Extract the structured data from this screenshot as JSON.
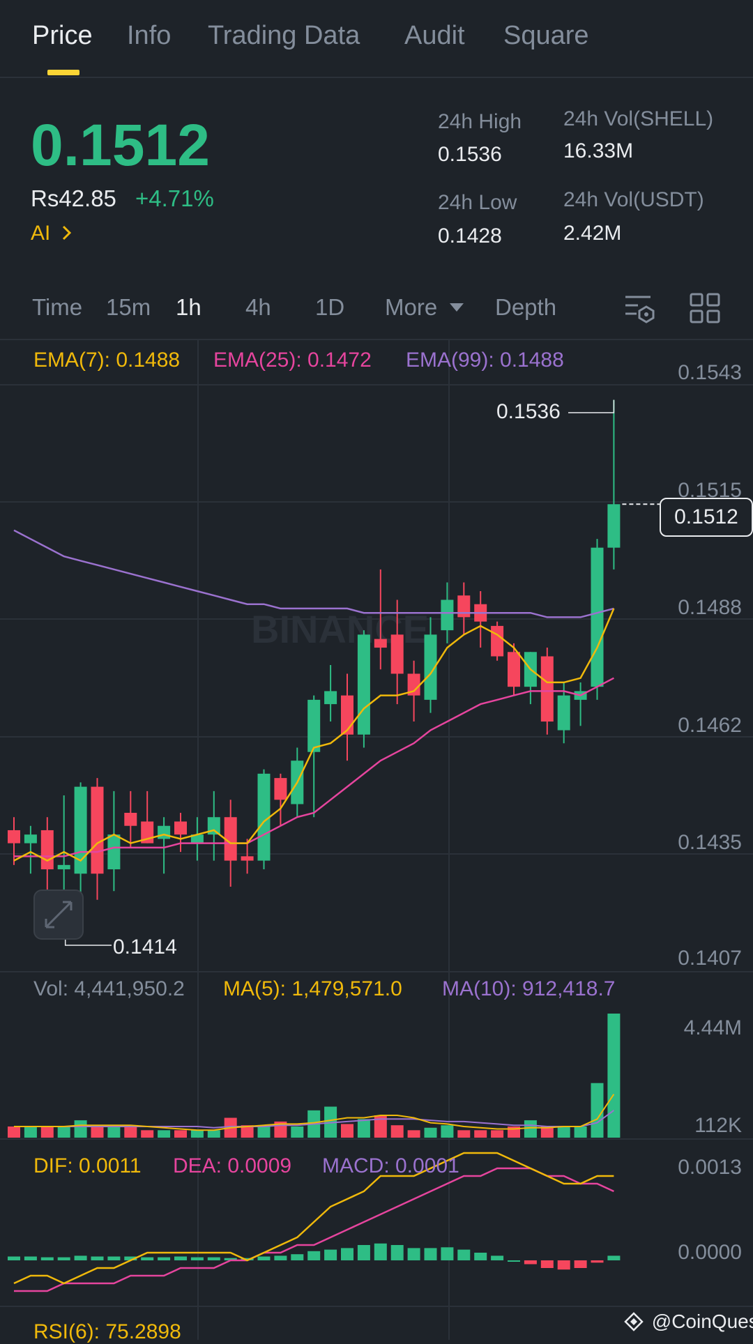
{
  "tabs": [
    {
      "label": "Price",
      "active": true
    },
    {
      "label": "Info"
    },
    {
      "label": "Trading Data"
    },
    {
      "label": "Audit"
    },
    {
      "label": "Square"
    }
  ],
  "ticker": {
    "price": "0.1512",
    "fiat": "Rs42.85",
    "change": "+4.71%",
    "ai_label": "AI",
    "high_label": "24h High",
    "high_value": "0.1536",
    "low_label": "24h Low",
    "low_value": "0.1428",
    "vol_base_label": "24h Vol(SHELL)",
    "vol_base_value": "16.33M",
    "vol_quote_label": "24h Vol(USDT)",
    "vol_quote_value": "2.42M"
  },
  "timeframes": [
    "Time",
    "15m",
    "1h",
    "4h",
    "1D",
    "More",
    "Depth"
  ],
  "active_timeframe": "1h",
  "icons": [
    "chart-settings-icon",
    "grid-layout-icon",
    "expand-icon",
    "dropdown-arrow-icon"
  ],
  "main_chart": {
    "ema7": "EMA(7): 0.1488",
    "ema25": "EMA(25): 0.1472",
    "ema99": "EMA(99): 0.1488",
    "axis": [
      "0.1543",
      "0.1515",
      "0.1488",
      "0.1462",
      "0.1435",
      "0.1407"
    ],
    "current_price": "0.1512",
    "high_marker": "0.1536",
    "low_marker": "0.1414",
    "watermark_text": "BINANCE"
  },
  "volume": {
    "vol": "Vol: 4,441,950.2",
    "ma5": "MA(5): 1,479,571.0",
    "ma10": "MA(10): 912,418.7",
    "axis": [
      "4.44M",
      "112K"
    ]
  },
  "macd": {
    "dif": "DIF: 0.0011",
    "dea": "DEA: 0.0009",
    "macd": "MACD: 0.0001",
    "axis": [
      "0.0013",
      "0.0000"
    ]
  },
  "rsi": {
    "label": "RSI(6): 75.2898"
  },
  "credit": "@CoinQuest",
  "colors": {
    "up": "#2ebd85",
    "down": "#f6465d",
    "ema7": "#f0b90b",
    "ema25": "#e6459e",
    "ema99": "#9b72cf",
    "accent": "#fcd535"
  },
  "chart_data": {
    "type": "candlestick",
    "interval": "1h",
    "y_range": [
      0.1407,
      0.1543
    ],
    "candles": [
      {
        "o": 0.1437,
        "h": 0.144,
        "l": 0.1429,
        "c": 0.1434
      },
      {
        "o": 0.1434,
        "h": 0.1438,
        "l": 0.1427,
        "c": 0.1436
      },
      {
        "o": 0.1437,
        "h": 0.144,
        "l": 0.1422,
        "c": 0.1428
      },
      {
        "o": 0.1428,
        "h": 0.1445,
        "l": 0.1412,
        "c": 0.1429
      },
      {
        "o": 0.1427,
        "h": 0.1448,
        "l": 0.142,
        "c": 0.1447
      },
      {
        "o": 0.1447,
        "h": 0.1449,
        "l": 0.1421,
        "c": 0.1427
      },
      {
        "o": 0.1428,
        "h": 0.1446,
        "l": 0.1423,
        "c": 0.1436
      },
      {
        "o": 0.1441,
        "h": 0.1446,
        "l": 0.1433,
        "c": 0.1438
      },
      {
        "o": 0.1439,
        "h": 0.1446,
        "l": 0.1434,
        "c": 0.1434
      },
      {
        "o": 0.1435,
        "h": 0.144,
        "l": 0.1427,
        "c": 0.1438
      },
      {
        "o": 0.1439,
        "h": 0.1441,
        "l": 0.1432,
        "c": 0.1436
      },
      {
        "o": 0.1434,
        "h": 0.144,
        "l": 0.143,
        "c": 0.1436
      },
      {
        "o": 0.1436,
        "h": 0.1446,
        "l": 0.143,
        "c": 0.144
      },
      {
        "o": 0.144,
        "h": 0.1444,
        "l": 0.1424,
        "c": 0.143
      },
      {
        "o": 0.1431,
        "h": 0.1435,
        "l": 0.1427,
        "c": 0.143
      },
      {
        "o": 0.143,
        "h": 0.1451,
        "l": 0.1428,
        "c": 0.145
      },
      {
        "o": 0.1449,
        "h": 0.145,
        "l": 0.1438,
        "c": 0.1444
      },
      {
        "o": 0.1443,
        "h": 0.1456,
        "l": 0.144,
        "c": 0.1453
      },
      {
        "o": 0.1455,
        "h": 0.1468,
        "l": 0.144,
        "c": 0.1467
      },
      {
        "o": 0.1466,
        "h": 0.1475,
        "l": 0.1462,
        "c": 0.1469
      },
      {
        "o": 0.1468,
        "h": 0.1473,
        "l": 0.1453,
        "c": 0.1459
      },
      {
        "o": 0.1459,
        "h": 0.1483,
        "l": 0.1456,
        "c": 0.1482
      },
      {
        "o": 0.1481,
        "h": 0.1497,
        "l": 0.1474,
        "c": 0.1479
      },
      {
        "o": 0.1482,
        "h": 0.149,
        "l": 0.1466,
        "c": 0.1473
      },
      {
        "o": 0.1473,
        "h": 0.1476,
        "l": 0.1462,
        "c": 0.1468
      },
      {
        "o": 0.1467,
        "h": 0.1486,
        "l": 0.1464,
        "c": 0.1482
      },
      {
        "o": 0.1483,
        "h": 0.1494,
        "l": 0.148,
        "c": 0.149
      },
      {
        "o": 0.1491,
        "h": 0.1494,
        "l": 0.1482,
        "c": 0.1486
      },
      {
        "o": 0.1489,
        "h": 0.1492,
        "l": 0.1479,
        "c": 0.1485
      },
      {
        "o": 0.1484,
        "h": 0.1485,
        "l": 0.1476,
        "c": 0.1477
      },
      {
        "o": 0.1478,
        "h": 0.148,
        "l": 0.1468,
        "c": 0.147
      },
      {
        "o": 0.147,
        "h": 0.1478,
        "l": 0.1466,
        "c": 0.1478
      },
      {
        "o": 0.1477,
        "h": 0.1479,
        "l": 0.1459,
        "c": 0.1462
      },
      {
        "o": 0.146,
        "h": 0.1471,
        "l": 0.1457,
        "c": 0.1468
      },
      {
        "o": 0.1467,
        "h": 0.1471,
        "l": 0.1461,
        "c": 0.1469
      },
      {
        "o": 0.147,
        "h": 0.1504,
        "l": 0.1467,
        "c": 0.1502
      },
      {
        "o": 0.1502,
        "h": 0.1536,
        "l": 0.1497,
        "c": 0.1512
      }
    ],
    "ema7": [
      0.143,
      0.1432,
      0.143,
      0.1432,
      0.143,
      0.1434,
      0.1436,
      0.1434,
      0.1435,
      0.1436,
      0.1435,
      0.1436,
      0.1437,
      0.1434,
      0.1434,
      0.1439,
      0.1442,
      0.1448,
      0.1456,
      0.1457,
      0.146,
      0.1465,
      0.1468,
      0.1468,
      0.1469,
      0.1473,
      0.1479,
      0.1482,
      0.1484,
      0.1482,
      0.1479,
      0.1474,
      0.1471,
      0.1471,
      0.1472,
      0.1479,
      0.1488
    ],
    "ema25": [
      0.1431,
      0.1431,
      0.1431,
      0.1431,
      0.1432,
      0.1432,
      0.1433,
      0.1433,
      0.1433,
      0.1433,
      0.1434,
      0.1434,
      0.1434,
      0.1434,
      0.1434,
      0.1436,
      0.1438,
      0.144,
      0.1441,
      0.1444,
      0.1447,
      0.145,
      0.1453,
      0.1455,
      0.1457,
      0.146,
      0.1462,
      0.1464,
      0.1466,
      0.1467,
      0.1468,
      0.1469,
      0.1469,
      0.1469,
      0.1468,
      0.147,
      0.1472
    ],
    "ema99": [
      0.1506,
      0.1504,
      0.1502,
      0.15,
      0.1499,
      0.1498,
      0.1497,
      0.1496,
      0.1495,
      0.1494,
      0.1493,
      0.1492,
      0.1491,
      0.149,
      0.1489,
      0.1489,
      0.1488,
      0.1488,
      0.1488,
      0.1488,
      0.1488,
      0.1487,
      0.1487,
      0.1487,
      0.1487,
      0.1487,
      0.1487,
      0.1487,
      0.1487,
      0.1487,
      0.1487,
      0.1487,
      0.1486,
      0.1486,
      0.1486,
      0.1487,
      0.1488
    ],
    "volume": [
      0.09,
      0.09,
      0.09,
      0.09,
      0.14,
      0.09,
      0.09,
      0.09,
      0.06,
      0.06,
      0.06,
      0.06,
      0.06,
      0.16,
      0.1,
      0.09,
      0.13,
      0.09,
      0.22,
      0.25,
      0.11,
      0.15,
      0.18,
      0.1,
      0.06,
      0.08,
      0.1,
      0.06,
      0.06,
      0.06,
      0.09,
      0.14,
      0.09,
      0.09,
      0.09,
      0.44,
      1.0
    ],
    "volume_ma5": [
      0.09,
      0.09,
      0.09,
      0.09,
      0.1,
      0.1,
      0.1,
      0.1,
      0.09,
      0.08,
      0.07,
      0.06,
      0.06,
      0.08,
      0.09,
      0.1,
      0.11,
      0.11,
      0.12,
      0.14,
      0.16,
      0.16,
      0.18,
      0.18,
      0.16,
      0.12,
      0.11,
      0.09,
      0.08,
      0.07,
      0.07,
      0.08,
      0.08,
      0.09,
      0.09,
      0.15,
      0.35
    ],
    "volume_ma10": [
      0.09,
      0.09,
      0.09,
      0.09,
      0.09,
      0.09,
      0.09,
      0.09,
      0.09,
      0.09,
      0.09,
      0.09,
      0.08,
      0.09,
      0.09,
      0.09,
      0.1,
      0.1,
      0.11,
      0.12,
      0.13,
      0.14,
      0.15,
      0.15,
      0.15,
      0.14,
      0.13,
      0.13,
      0.12,
      0.11,
      0.1,
      0.1,
      0.09,
      0.09,
      0.09,
      0.12,
      0.22
    ],
    "macd_hist": [
      5e-05,
      5e-05,
      4e-05,
      4e-05,
      6e-05,
      5e-05,
      5e-05,
      5e-05,
      4e-05,
      4e-05,
      5e-05,
      4e-05,
      4e-05,
      3e-05,
      3e-05,
      5e-05,
      6e-05,
      8e-05,
      0.00012,
      0.00014,
      0.00016,
      0.0002,
      0.00022,
      0.0002,
      0.00016,
      0.00016,
      0.00017,
      0.00014,
      0.0001,
      6e-05,
      0.0,
      -5e-05,
      -0.0001,
      -0.00012,
      -0.0001,
      -3e-05,
      6e-05
    ],
    "dif": [
      -0.0003,
      -0.0002,
      -0.0002,
      -0.0003,
      -0.0002,
      -0.0001,
      -0.0001,
      0.0,
      0.0001,
      0.0001,
      0.0001,
      0.0001,
      0.0001,
      0.0001,
      0.0,
      0.0001,
      0.0002,
      0.0003,
      0.0005,
      0.0007,
      0.0008,
      0.0009,
      0.0011,
      0.0011,
      0.0011,
      0.0012,
      0.0013,
      0.0014,
      0.0014,
      0.0014,
      0.0013,
      0.0012,
      0.0011,
      0.001,
      0.001,
      0.0011,
      0.0011
    ],
    "dea": [
      -0.0004,
      -0.0004,
      -0.0004,
      -0.0003,
      -0.0003,
      -0.0003,
      -0.0003,
      -0.0002,
      -0.0002,
      -0.0002,
      -0.0001,
      -0.0001,
      -0.0001,
      0.0,
      0.0,
      0.0001,
      0.0001,
      0.0002,
      0.0002,
      0.0003,
      0.0004,
      0.0005,
      0.0006,
      0.0007,
      0.0008,
      0.0009,
      0.001,
      0.0011,
      0.0011,
      0.0012,
      0.0012,
      0.0012,
      0.0011,
      0.0011,
      0.001,
      0.001,
      0.0009
    ]
  }
}
